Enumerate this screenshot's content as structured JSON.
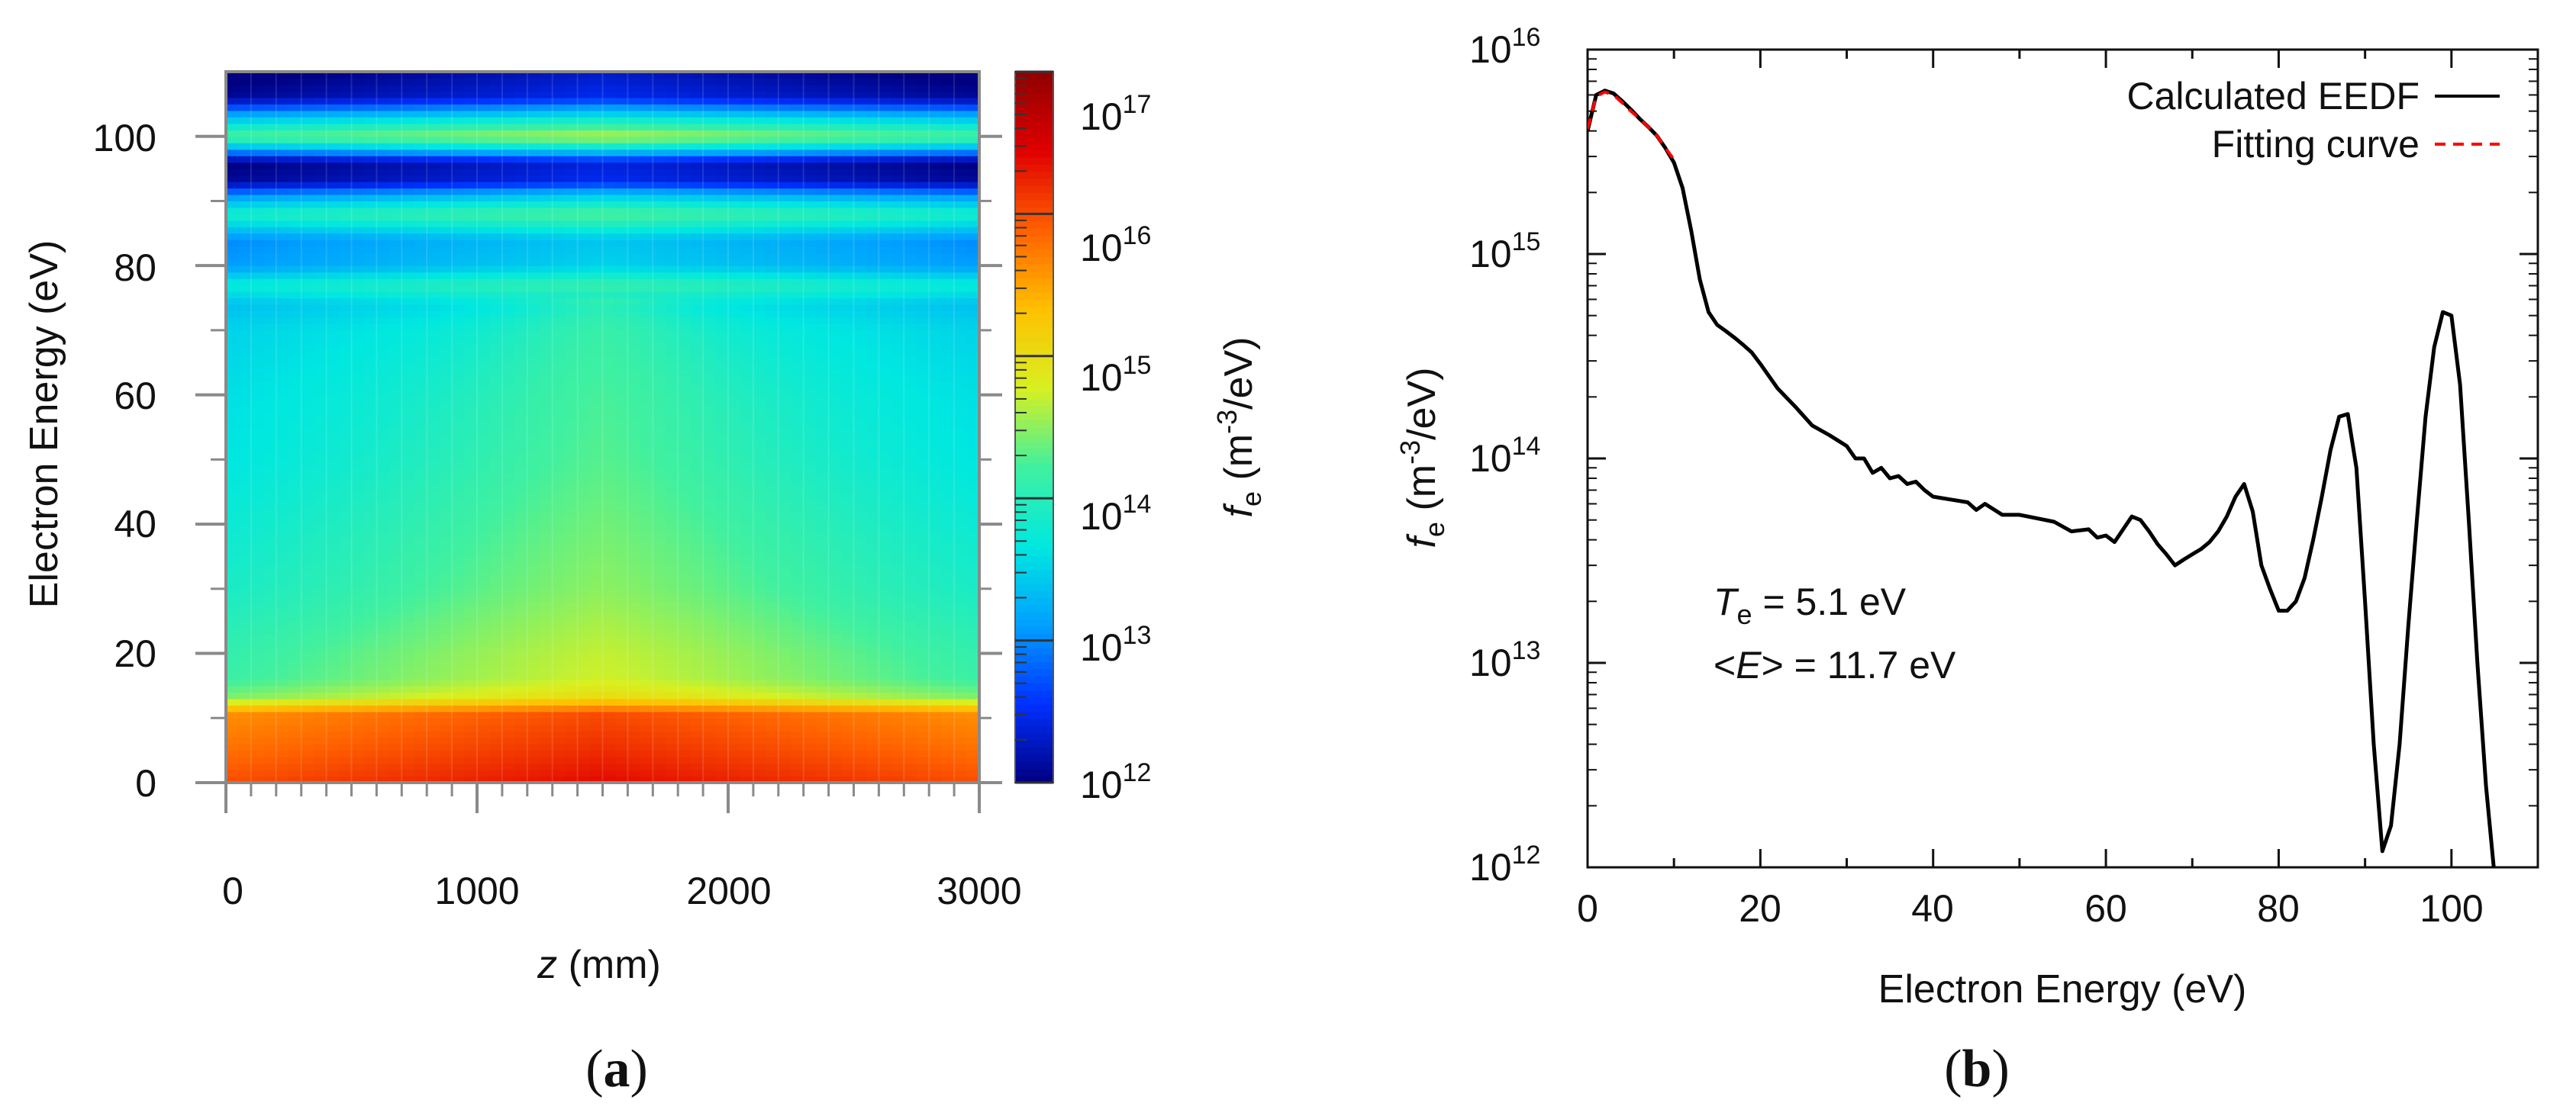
{
  "chart_data": [
    {
      "type": "heatmap",
      "panel_label": "a",
      "xlabel_var": "z",
      "xlabel_unit": " (mm)",
      "ylabel": "Electron Energy (eV)",
      "xlim": [
        0,
        3000
      ],
      "ylim": [
        0,
        110
      ],
      "x_ticks": [
        0,
        1000,
        2000,
        3000
      ],
      "y_ticks": [
        0,
        20,
        40,
        60,
        80,
        100
      ],
      "colorbar": {
        "scale": "log",
        "min_exp": 12,
        "max_exp": 17,
        "tick_base": "10",
        "tick_exps": [
          "12",
          "13",
          "14",
          "15",
          "16",
          "17"
        ],
        "label_var": "f",
        "label_sub": "e",
        "label_unit_pre": " (m",
        "label_unit_sup": "-3",
        "label_unit_post": "/eV)",
        "colors": [
          "#000080",
          "#0030ff",
          "#00a0ff",
          "#00e8e0",
          "#40f0a0",
          "#d8f020",
          "#ffc000",
          "#ff6000",
          "#e00000",
          "#900000"
        ]
      },
      "energy_profile_log10": [
        [
          0,
          16.2
        ],
        [
          5,
          16.0
        ],
        [
          11,
          15.8
        ],
        [
          13,
          14.6
        ],
        [
          16,
          14.3
        ],
        [
          20,
          14.25
        ],
        [
          30,
          14.05
        ],
        [
          40,
          13.95
        ],
        [
          50,
          13.85
        ],
        [
          60,
          13.8
        ],
        [
          70,
          13.7
        ],
        [
          74,
          13.55
        ],
        [
          77,
          13.95
        ],
        [
          80,
          13.3
        ],
        [
          84,
          13.2
        ],
        [
          88,
          14.1
        ],
        [
          91,
          13.2
        ],
        [
          93,
          12.3
        ],
        [
          96,
          12.2
        ],
        [
          100,
          14.5
        ],
        [
          103,
          13.5
        ],
        [
          106,
          12.3
        ],
        [
          110,
          12.1
        ]
      ],
      "z_profile_gain": [
        [
          0,
          -0.2
        ],
        [
          1500,
          0.2
        ],
        [
          3000,
          -0.2
        ]
      ]
    },
    {
      "type": "line",
      "panel_label": "b",
      "xlabel": "Electron Energy (eV)",
      "ylabel_var": "f",
      "ylabel_sub": "e",
      "ylabel_unit_pre": " (m",
      "ylabel_unit_sup": "-3",
      "ylabel_unit_post": "/eV)",
      "xlim": [
        0,
        110
      ],
      "ylim_log10": [
        12,
        16
      ],
      "x_ticks": [
        0,
        20,
        40,
        60,
        80,
        100
      ],
      "y_tick_base": "10",
      "y_tick_exps": [
        "12",
        "13",
        "14",
        "15",
        "16"
      ],
      "series": [
        {
          "name": "Calculated EEDF",
          "color": "#000000",
          "style": "solid",
          "x": [
            0,
            1,
            2,
            3,
            4,
            5,
            6,
            7,
            8,
            9,
            10,
            11,
            12,
            13,
            14,
            15,
            16,
            17,
            18,
            19,
            20,
            22,
            24,
            26,
            28,
            30,
            31,
            32,
            33,
            34,
            35,
            36,
            37,
            38,
            39,
            40,
            42,
            44,
            45,
            46,
            48,
            50,
            52,
            54,
            56,
            58,
            59,
            60,
            61,
            62,
            63,
            64,
            65,
            66,
            67,
            68,
            69,
            70,
            71,
            72,
            73,
            74,
            75,
            76,
            77,
            78,
            79,
            80,
            81,
            82,
            83,
            84,
            85,
            86,
            87,
            88,
            89,
            90,
            91,
            92,
            93,
            94,
            95,
            96,
            97,
            98,
            99,
            100,
            101,
            102,
            103,
            104,
            105
          ],
          "y": [
            4000000000000000.0,
            6000000000000000.0,
            6300000000000000.0,
            6100000000000000.0,
            5600000000000000.0,
            5100000000000000.0,
            4600000000000000.0,
            4200000000000000.0,
            3800000000000000.0,
            3300000000000000.0,
            2800000000000000.0,
            2100000000000000.0,
            1300000000000000.0,
            750000000000000.0,
            520000000000000.0,
            450000000000000.0,
            420000000000000.0,
            390000000000000.0,
            360000000000000.0,
            330000000000000.0,
            290000000000000.0,
            220000000000000.0,
            180000000000000.0,
            145000000000000.0,
            130000000000000.0,
            115000000000000.0,
            100000000000000.0,
            100000000000000.0,
            85000000000000.0,
            90000000000000.0,
            80000000000000.0,
            82000000000000.0,
            75000000000000.0,
            77000000000000.0,
            70000000000000.0,
            65000000000000.0,
            63000000000000.0,
            61000000000000.0,
            56000000000000.0,
            60000000000000.0,
            53000000000000.0,
            53000000000000.0,
            51000000000000.0,
            49000000000000.0,
            44000000000000.0,
            45000000000000.0,
            41000000000000.0,
            42000000000000.0,
            39000000000000.0,
            45000000000000.0,
            52000000000000.0,
            50000000000000.0,
            44000000000000.0,
            38000000000000.0,
            34000000000000.0,
            30000000000000.0,
            32000000000000.0,
            34000000000000.0,
            36000000000000.0,
            39000000000000.0,
            44000000000000.0,
            52000000000000.0,
            65000000000000.0,
            75000000000000.0,
            55000000000000.0,
            30000000000000.0,
            23000000000000.0,
            18000000000000.0,
            18000000000000.0,
            20000000000000.0,
            26000000000000.0,
            40000000000000.0,
            65000000000000.0,
            110000000000000.0,
            160000000000000.0,
            165000000000000.0,
            90000000000000.0,
            20000000000000.0,
            4000000000000.0,
            1200000000000.0,
            1600000000000.0,
            4000000000000.0,
            15000000000000.0,
            50000000000000.0,
            160000000000000.0,
            350000000000000.0,
            520000000000000.0,
            500000000000000.0,
            230000000000000.0,
            50000000000000.0,
            10000000000000.0,
            2500000000000.0,
            900000000000.0
          ]
        },
        {
          "name": "Fitting curve",
          "color": "#ff0000",
          "style": "dashed",
          "x": [
            0,
            1,
            2,
            3,
            4,
            5,
            6,
            7,
            8,
            9,
            10
          ],
          "y": [
            4100000000000000.0,
            5900000000000000.0,
            6200000000000000.0,
            6000000000000000.0,
            5500000000000000.0,
            5000000000000000.0,
            4600000000000000.0,
            4200000000000000.0,
            3800000000000000.0,
            3300000000000000.0,
            2900000000000000.0
          ]
        }
      ],
      "annotations": [
        {
          "var": "T",
          "sub": "e",
          "text": " = 5.1 eV"
        },
        {
          "pre": "<",
          "var": "E",
          "post": "> = 11.7 eV"
        }
      ]
    }
  ]
}
